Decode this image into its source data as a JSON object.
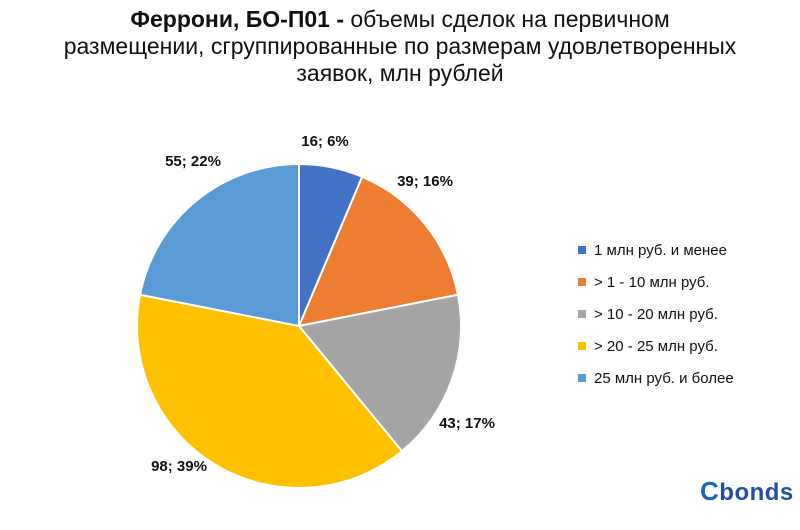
{
  "title": {
    "bold": "Феррони, БО-П01 -",
    "rest": "объемы сделок на первичном размещении, сгруппированные по размерам удовлетворенных заявок, млн рублей"
  },
  "logo": {
    "text": "bonds",
    "first": "C"
  },
  "chart_data": {
    "type": "pie",
    "title": "Феррони, БО-П01 - объемы сделок на первичном размещении, сгруппированные по размерам удовлетворенных заявок, млн рублей",
    "legend_position": "right",
    "categories": [
      "1 млн руб. и менее",
      "> 1 - 10 млн руб.",
      "> 10 - 20 млн руб.",
      "> 20 - 25 млн руб.",
      "25 млн руб. и более"
    ],
    "values": [
      16,
      39,
      43,
      98,
      55
    ],
    "percents": [
      6,
      16,
      17,
      39,
      22
    ],
    "labels": [
      "16; 6%",
      "39; 16%",
      "43; 17%",
      "98; 39%",
      "55; 22%"
    ],
    "colors": [
      "#4472c4",
      "#ed7d31",
      "#a5a5a5",
      "#ffc000",
      "#5b9bd5"
    ]
  }
}
